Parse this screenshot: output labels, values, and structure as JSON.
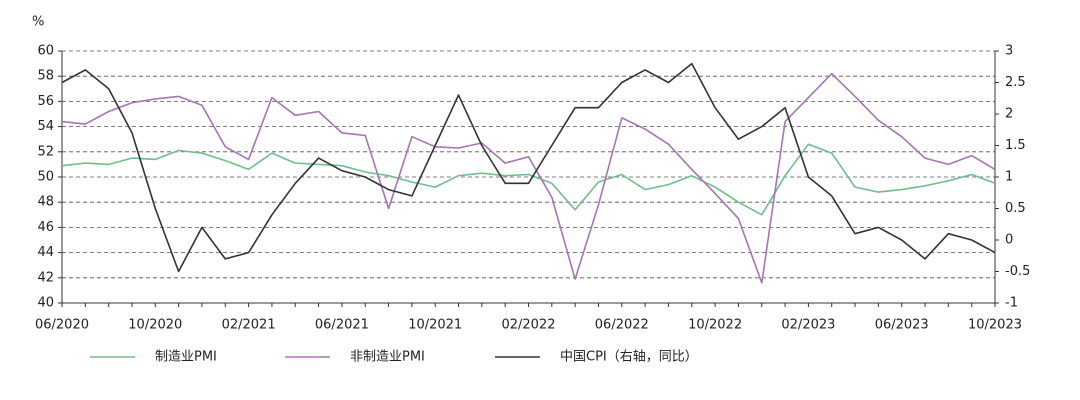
{
  "chart_data": {
    "type": "line",
    "y_label": "%",
    "categories": [
      "06/2020",
      null,
      null,
      null,
      "10/2020",
      null,
      null,
      null,
      "02/2021",
      null,
      null,
      null,
      "06/2021",
      null,
      null,
      null,
      "10/2021",
      null,
      null,
      null,
      "02/2022",
      null,
      null,
      null,
      "06/2022",
      null,
      null,
      null,
      "10/2022",
      null,
      null,
      null,
      "02/2023",
      null,
      null,
      null,
      "06/2023",
      null,
      null,
      null,
      "10/2023"
    ],
    "series": [
      {
        "name": "制造业PMI",
        "color": "#6fbf8c",
        "values": [
          50.9,
          51.1,
          51.0,
          51.5,
          51.4,
          52.1,
          51.9,
          51.3,
          50.6,
          51.9,
          51.1,
          51.0,
          50.9,
          50.4,
          50.1,
          49.6,
          49.2,
          50.1,
          50.3,
          50.1,
          50.2,
          49.5,
          47.4,
          49.6,
          50.2,
          49.0,
          49.4,
          50.1,
          49.2,
          48.0,
          47.0,
          50.1,
          52.6,
          51.9,
          49.2,
          48.8,
          49.0,
          49.3,
          49.7,
          50.2,
          49.5
        ]
      },
      {
        "name": "非制造业PMI",
        "color": "#a774b4",
        "values": [
          54.4,
          54.2,
          55.2,
          55.9,
          56.2,
          56.4,
          55.7,
          52.4,
          51.4,
          56.3,
          54.9,
          55.2,
          53.5,
          53.3,
          47.5,
          53.2,
          52.4,
          52.3,
          52.7,
          51.1,
          51.6,
          48.4,
          41.9,
          47.8,
          54.7,
          53.8,
          52.6,
          50.6,
          48.7,
          46.7,
          41.6,
          54.4,
          56.3,
          58.2,
          56.4,
          54.5,
          53.2,
          51.5,
          51.0,
          51.7,
          50.6
        ]
      },
      {
        "name": "中国CPI（右轴，同比）",
        "color": "#333333",
        "axis": "y2",
        "values": [
          2.5,
          2.7,
          2.4,
          1.7,
          0.5,
          -0.5,
          0.2,
          -0.3,
          -0.2,
          0.4,
          0.9,
          1.3,
          1.1,
          1.0,
          0.8,
          0.7,
          1.5,
          2.3,
          1.5,
          0.9,
          0.9,
          1.5,
          2.1,
          2.1,
          2.5,
          2.7,
          2.5,
          2.8,
          2.1,
          1.6,
          1.8,
          2.1,
          1.0,
          0.7,
          0.1,
          0.2,
          0.0,
          -0.3,
          0.1,
          0.0,
          -0.2
        ]
      }
    ],
    "ylim": [
      40,
      60
    ],
    "yticks": [
      40,
      42,
      44,
      46,
      48,
      50,
      52,
      54,
      56,
      58,
      60
    ],
    "y2lim": [
      -1,
      3
    ],
    "y2ticks": [
      -1,
      -0.5,
      0,
      0.5,
      1,
      1.5,
      2,
      2.5,
      3
    ],
    "grid": true,
    "legend": "bottom"
  }
}
